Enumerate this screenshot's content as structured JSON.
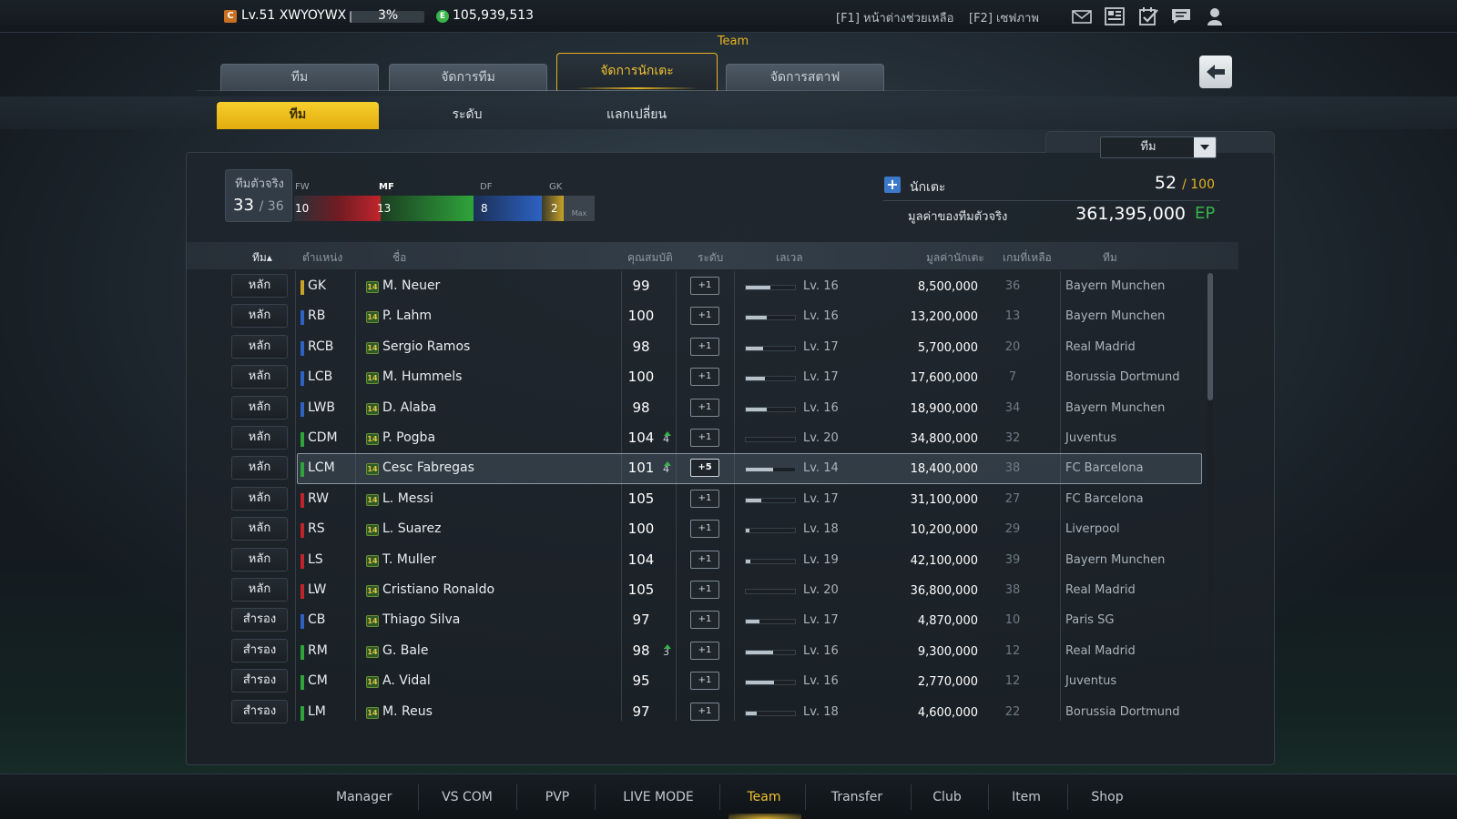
{
  "topbar": {
    "level_badge": "C",
    "level_text": "Lv.51 XWYOYWX",
    "exp_percent": "3%",
    "exp_fraction": 0.03,
    "coin_badge": "E",
    "coins": "105,939,513",
    "help_f1": "[F1] หน้าต่างช่วยเหลือ",
    "help_f2": "[F2] เซฟภาพ",
    "icons": [
      "mail-icon",
      "layout-icon",
      "calendar-check-icon",
      "chat-icon",
      "profile-icon"
    ]
  },
  "section_title": "Team",
  "tabs": [
    {
      "label": "ทีม",
      "active": false
    },
    {
      "label": "จัดการทีม",
      "active": false
    },
    {
      "label": "จัดการนักเตะ",
      "active": true
    },
    {
      "label": "จัดการสตาฟ",
      "active": false
    }
  ],
  "subtabs": [
    {
      "label": "ทีม",
      "active": true
    },
    {
      "label": "ระดับ",
      "active": false
    },
    {
      "label": "แลกเปลี่ยน",
      "active": false
    }
  ],
  "filter": {
    "selected": "ทีม"
  },
  "real_team": {
    "label": "ทีมตัวจริง",
    "value": "33",
    "max": "/ 36"
  },
  "positions": {
    "max_label": "Max",
    "segments": [
      {
        "label": "FW",
        "count": "10",
        "color": "#c0242b"
      },
      {
        "label": "MF",
        "count": "13",
        "color": "#2fa43a"
      },
      {
        "label": "DF",
        "count": "8",
        "color": "#2d62c2"
      },
      {
        "label": "GK",
        "count": "2",
        "color": "#c9a227"
      }
    ]
  },
  "players_summary": {
    "label": "นักเตะ",
    "count": "52",
    "max": "/ 100"
  },
  "team_value": {
    "label": "มูลค่าของทีมตัวจริง",
    "amount": "361,395,000",
    "unit": "EP"
  },
  "table": {
    "headers": {
      "team": "ทีม▴",
      "position": "ตำแหน่ง",
      "name": "ชื่อ",
      "ovr": "คุณสมบัติ",
      "grade": "ระดับ",
      "level": "เลเวล",
      "value": "มูลค่านักเตะ",
      "games": "เกมที่เหลือ",
      "club": "ทีม"
    },
    "rows": [
      {
        "role": "หลัก",
        "pos": "GK",
        "pos_color": "#c9a227",
        "season": "14",
        "name": "M. Neuer",
        "ovr": "99",
        "up": "",
        "grade": "+1",
        "level_fraction": 0.5,
        "level": "Lv. 16",
        "value": "8,500,000",
        "games": "36",
        "club": "Bayern Munchen"
      },
      {
        "role": "หลัก",
        "pos": "RB",
        "pos_color": "#2d62c2",
        "season": "14",
        "name": "P. Lahm",
        "ovr": "100",
        "up": "",
        "grade": "+1",
        "level_fraction": 0.42,
        "level": "Lv. 16",
        "value": "13,200,000",
        "games": "13",
        "club": "Bayern Munchen"
      },
      {
        "role": "หลัก",
        "pos": "RCB",
        "pos_color": "#2d62c2",
        "season": "14",
        "name": "Sergio Ramos",
        "ovr": "98",
        "up": "",
        "grade": "+1",
        "level_fraction": 0.35,
        "level": "Lv. 17",
        "value": "5,700,000",
        "games": "20",
        "club": "Real Madrid"
      },
      {
        "role": "หลัก",
        "pos": "LCB",
        "pos_color": "#2d62c2",
        "season": "14",
        "name": "M. Hummels",
        "ovr": "100",
        "up": "",
        "grade": "+1",
        "level_fraction": 0.38,
        "level": "Lv. 17",
        "value": "17,600,000",
        "games": "7",
        "club": "Borussia Dortmund"
      },
      {
        "role": "หลัก",
        "pos": "LWB",
        "pos_color": "#2d62c2",
        "season": "14",
        "name": "D. Alaba",
        "ovr": "98",
        "up": "",
        "grade": "+1",
        "level_fraction": 0.42,
        "level": "Lv. 16",
        "value": "18,900,000",
        "games": "34",
        "club": "Bayern Munchen"
      },
      {
        "role": "หลัก",
        "pos": "CDM",
        "pos_color": "#2fa43a",
        "season": "14",
        "name": "P. Pogba",
        "ovr": "104",
        "up": "4",
        "grade": "+1",
        "level_fraction": 0.0,
        "level": "Lv. 20",
        "value": "34,800,000",
        "games": "32",
        "club": "Juventus"
      },
      {
        "role": "หลัก",
        "pos": "LCM",
        "pos_color": "#2fa43a",
        "season": "14",
        "name": "Cesc Fabregas",
        "ovr": "101",
        "up": "4",
        "grade": "+5",
        "level_fraction": 0.55,
        "level": "Lv. 14",
        "value": "18,400,000",
        "games": "38",
        "club": "FC Barcelona",
        "selected": true
      },
      {
        "role": "หลัก",
        "pos": "RW",
        "pos_color": "#c0242b",
        "season": "14",
        "name": "L. Messi",
        "ovr": "105",
        "up": "",
        "grade": "+1",
        "level_fraction": 0.32,
        "level": "Lv. 17",
        "value": "31,100,000",
        "games": "27",
        "club": "FC Barcelona"
      },
      {
        "role": "หลัก",
        "pos": "RS",
        "pos_color": "#c0242b",
        "season": "14",
        "name": "L. Suarez",
        "ovr": "100",
        "up": "",
        "grade": "+1",
        "level_fraction": 0.08,
        "level": "Lv. 18",
        "value": "10,200,000",
        "games": "29",
        "club": "Liverpool"
      },
      {
        "role": "หลัก",
        "pos": "LS",
        "pos_color": "#c0242b",
        "season": "14",
        "name": "T. Muller",
        "ovr": "104",
        "up": "",
        "grade": "+1",
        "level_fraction": 0.1,
        "level": "Lv. 19",
        "value": "42,100,000",
        "games": "39",
        "club": "Bayern Munchen"
      },
      {
        "role": "หลัก",
        "pos": "LW",
        "pos_color": "#c0242b",
        "season": "14",
        "name": "Cristiano Ronaldo",
        "ovr": "105",
        "up": "",
        "grade": "+1",
        "level_fraction": 0.0,
        "level": "Lv. 20",
        "value": "36,800,000",
        "games": "38",
        "club": "Real Madrid"
      },
      {
        "role": "สำรอง",
        "pos": "CB",
        "pos_color": "#2d62c2",
        "season": "14",
        "name": "Thiago Silva",
        "ovr": "97",
        "up": "",
        "grade": "+1",
        "level_fraction": 0.28,
        "level": "Lv. 17",
        "value": "4,870,000",
        "games": "10",
        "club": "Paris SG"
      },
      {
        "role": "สำรอง",
        "pos": "RM",
        "pos_color": "#2fa43a",
        "season": "14",
        "name": "G. Bale",
        "ovr": "98",
        "up": "3",
        "grade": "+1",
        "level_fraction": 0.55,
        "level": "Lv. 16",
        "value": "9,300,000",
        "games": "12",
        "club": "Real Madrid"
      },
      {
        "role": "สำรอง",
        "pos": "CM",
        "pos_color": "#2fa43a",
        "season": "14",
        "name": "A. Vidal",
        "ovr": "95",
        "up": "",
        "grade": "+1",
        "level_fraction": 0.58,
        "level": "Lv. 16",
        "value": "2,770,000",
        "games": "12",
        "club": "Juventus"
      },
      {
        "role": "สำรอง",
        "pos": "LM",
        "pos_color": "#2fa43a",
        "season": "14",
        "name": "M. Reus",
        "ovr": "97",
        "up": "",
        "grade": "+1",
        "level_fraction": 0.22,
        "level": "Lv. 18",
        "value": "4,600,000",
        "games": "22",
        "club": "Borussia Dortmund"
      }
    ]
  },
  "bottom_nav": [
    {
      "label": "Manager",
      "active": false
    },
    {
      "label": "VS COM",
      "active": false
    },
    {
      "label": "PVP",
      "active": false
    },
    {
      "label": "LIVE MODE",
      "active": false
    },
    {
      "label": "Team",
      "active": true
    },
    {
      "label": "Transfer",
      "active": false
    },
    {
      "label": "Club",
      "active": false
    },
    {
      "label": "Item",
      "active": false
    },
    {
      "label": "Shop",
      "active": false
    }
  ]
}
